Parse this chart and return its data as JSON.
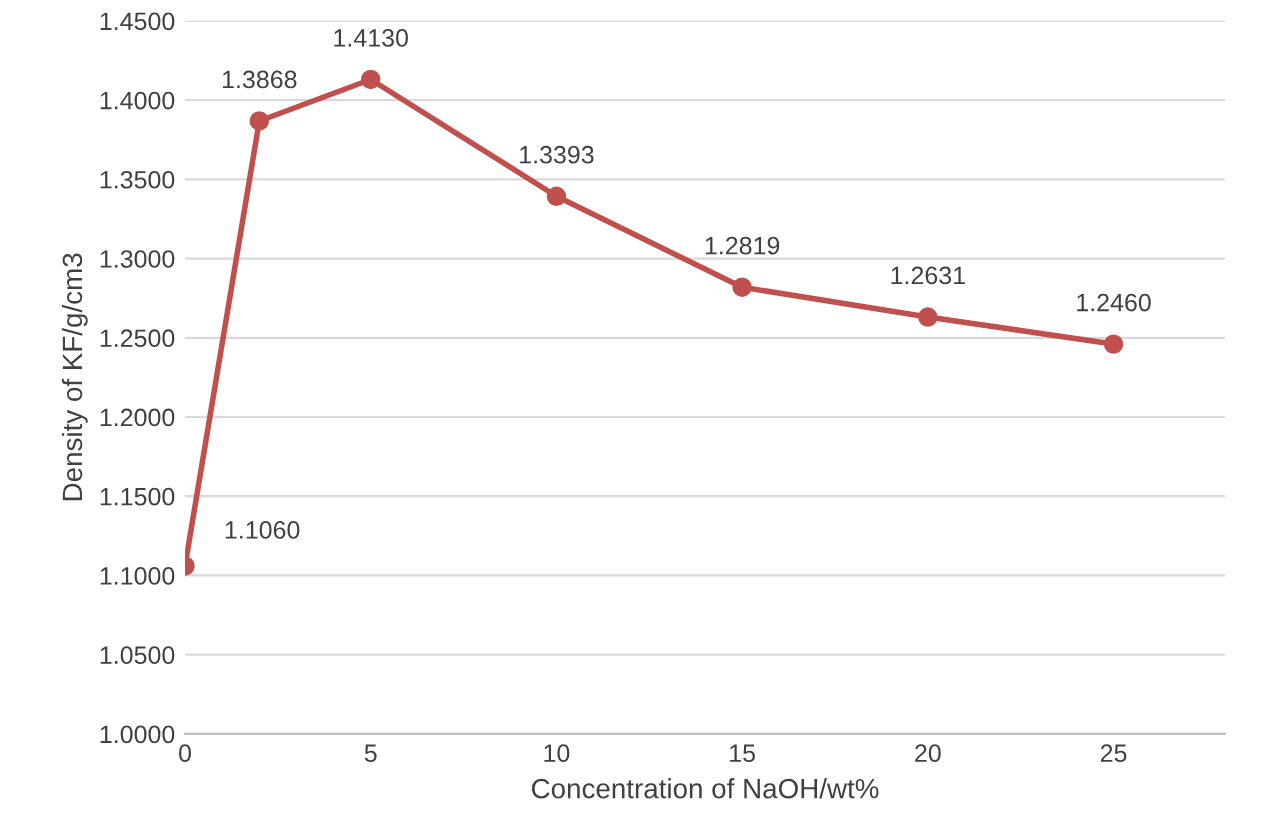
{
  "chart_data": {
    "type": "line",
    "xlabel": "Concentration of NaOH/wt%",
    "ylabel": "Density of KF/g/cm3",
    "x": [
      0,
      2,
      5,
      10,
      15,
      20,
      25
    ],
    "series": [
      {
        "color": "#c0504d",
        "values": [
          1.106,
          1.3868,
          1.413,
          1.3393,
          1.2819,
          1.2631,
          1.246
        ],
        "value_labels": [
          "1.1060",
          "1.3868",
          "1.4130",
          "1.3393",
          "1.2819",
          "1.2631",
          "1.2460"
        ]
      }
    ],
    "xlim": [
      0,
      28
    ],
    "xticks": [
      0,
      5,
      10,
      15,
      20,
      25
    ],
    "ylim": [
      1.0,
      1.45
    ],
    "yticks": [
      {
        "value": 1.0,
        "label": "1.0000"
      },
      {
        "value": 1.05,
        "label": "1.0500"
      },
      {
        "value": 1.1,
        "label": "1.1000"
      },
      {
        "value": 1.15,
        "label": "1.1500"
      },
      {
        "value": 1.2,
        "label": "1.2000"
      },
      {
        "value": 1.25,
        "label": "1.2500"
      },
      {
        "value": 1.3,
        "label": "1.3000"
      },
      {
        "value": 1.35,
        "label": "1.3500"
      },
      {
        "value": 1.4,
        "label": "1.4000"
      },
      {
        "value": 1.45,
        "label": "1.4500"
      }
    ],
    "grid": "y",
    "marker": "circle",
    "line_style": "solid"
  }
}
